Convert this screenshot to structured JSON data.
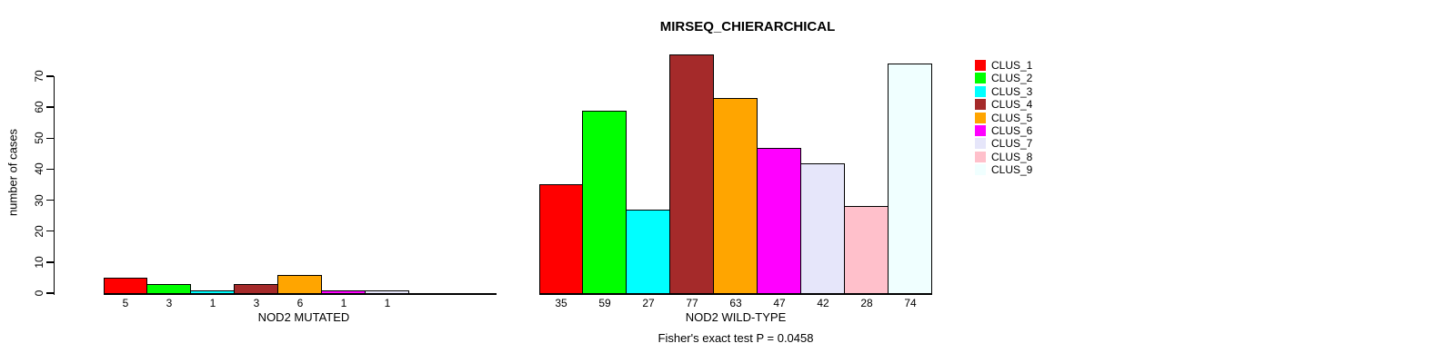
{
  "figure": {
    "title": "MIRSEQ_CHIERARCHICAL",
    "ylabel": "number of cases",
    "footnote": "Fisher's exact test P = 0.0458"
  },
  "legend": {
    "items": [
      {
        "label": "CLUS_1",
        "color": "#FF0000"
      },
      {
        "label": "CLUS_2",
        "color": "#00FF00"
      },
      {
        "label": "CLUS_3",
        "color": "#00FFFF"
      },
      {
        "label": "CLUS_4",
        "color": "#A52A2A"
      },
      {
        "label": "CLUS_5",
        "color": "#FFA500"
      },
      {
        "label": "CLUS_6",
        "color": "#FF00FF"
      },
      {
        "label": "CLUS_7",
        "color": "#E6E6FA"
      },
      {
        "label": "CLUS_8",
        "color": "#FFC0CB"
      },
      {
        "label": "CLUS_9",
        "color": "#F0FFFF"
      }
    ]
  },
  "chart_data": [
    {
      "type": "bar",
      "title": "MIRSEQ_CHIERARCHICAL",
      "xlabel": "NOD2 MUTATED",
      "ylabel": "number of cases",
      "ylim": [
        0,
        70
      ],
      "yticks": [
        0,
        10,
        20,
        30,
        40,
        50,
        60,
        70
      ],
      "grid": false,
      "categories": [
        "CLUS_1",
        "CLUS_2",
        "CLUS_3",
        "CLUS_4",
        "CLUS_5",
        "CLUS_6",
        "CLUS_7"
      ],
      "values": [
        5,
        3,
        1,
        3,
        6,
        1,
        1
      ],
      "bar_labels": [
        "5",
        "3",
        "1",
        "3",
        "6",
        "1",
        "1"
      ]
    },
    {
      "type": "bar",
      "xlabel": "NOD2 WILD-TYPE",
      "ylim": [
        0,
        70
      ],
      "annotation": "Fisher's exact test P = 0.0458",
      "legend_position": "right",
      "categories": [
        "CLUS_1",
        "CLUS_2",
        "CLUS_3",
        "CLUS_4",
        "CLUS_5",
        "CLUS_6",
        "CLUS_7",
        "CLUS_8",
        "CLUS_9"
      ],
      "values": [
        35,
        59,
        27,
        77,
        63,
        47,
        42,
        28,
        74
      ],
      "bar_labels": [
        "35",
        "59",
        "27",
        "77",
        "63",
        "47",
        "42",
        "28",
        "74"
      ]
    }
  ]
}
